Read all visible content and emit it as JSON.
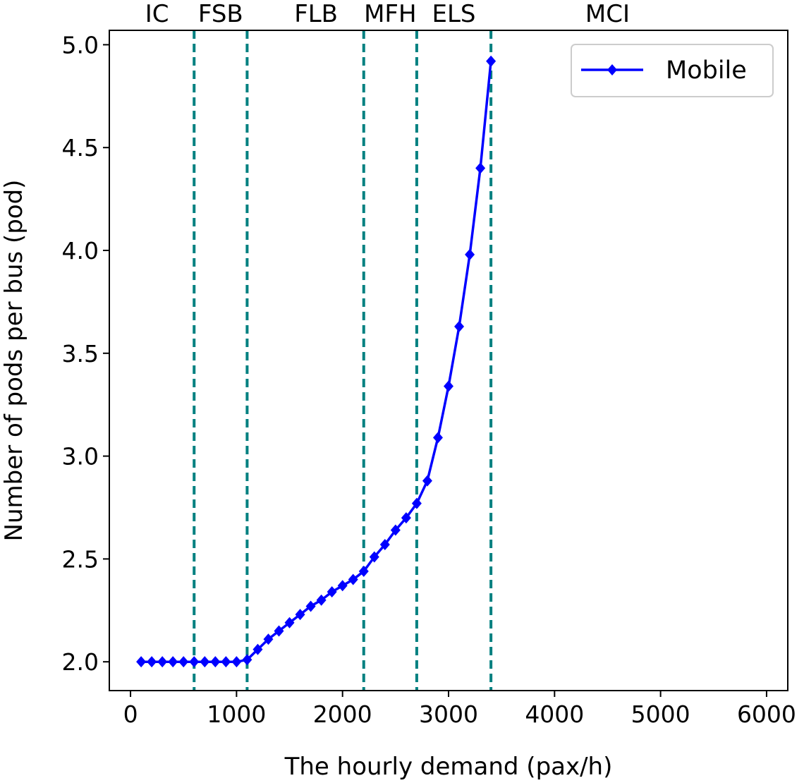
{
  "chart_data": {
    "type": "line",
    "title": "",
    "xlabel": "The hourly demand (pax/h)",
    "ylabel": "Number of pods per bus (pod)",
    "xlim": [
      -200,
      6200
    ],
    "ylim": [
      1.86,
      5.07
    ],
    "x_ticks": [
      0,
      1000,
      2000,
      3000,
      4000,
      5000,
      6000
    ],
    "x_tick_labels": [
      "0",
      "1000",
      "2000",
      "3000",
      "4000",
      "5000",
      "6000"
    ],
    "y_ticks": [
      2.0,
      2.5,
      3.0,
      3.5,
      4.0,
      4.5,
      5.0
    ],
    "y_tick_labels": [
      "2.0",
      "2.5",
      "3.0",
      "3.5",
      "4.0",
      "4.5",
      "5.0"
    ],
    "grid": false,
    "legend_position": "top-right",
    "series": [
      {
        "name": "Mobile",
        "color": "#0000ff",
        "marker": "diamond",
        "x": [
          100,
          200,
          300,
          400,
          500,
          600,
          700,
          800,
          900,
          1000,
          1100,
          1200,
          1300,
          1400,
          1500,
          1600,
          1700,
          1800,
          1900,
          2000,
          2100,
          2200,
          2300,
          2400,
          2500,
          2600,
          2700,
          2800,
          2900,
          3000,
          3100,
          3200,
          3300,
          3400
        ],
        "values": [
          2.0,
          2.0,
          2.0,
          2.0,
          2.0,
          2.0,
          2.0,
          2.0,
          2.0,
          2.0,
          2.01,
          2.06,
          2.11,
          2.15,
          2.19,
          2.23,
          2.27,
          2.3,
          2.34,
          2.37,
          2.4,
          2.44,
          2.51,
          2.57,
          2.64,
          2.7,
          2.77,
          2.88,
          3.09,
          3.34,
          3.63,
          3.98,
          4.4,
          4.92
        ]
      }
    ],
    "vertical_lines": {
      "color": "#008080",
      "style": "dashed",
      "x": [
        600,
        1100,
        2200,
        2700,
        3400
      ]
    },
    "region_labels": [
      {
        "text": "IC",
        "x": 250
      },
      {
        "text": "FSB",
        "x": 850
      },
      {
        "text": "FLB",
        "x": 1750
      },
      {
        "text": "MFH",
        "x": 2450
      },
      {
        "text": "ELS",
        "x": 3050
      },
      {
        "text": "MCI",
        "x": 4500
      }
    ]
  }
}
